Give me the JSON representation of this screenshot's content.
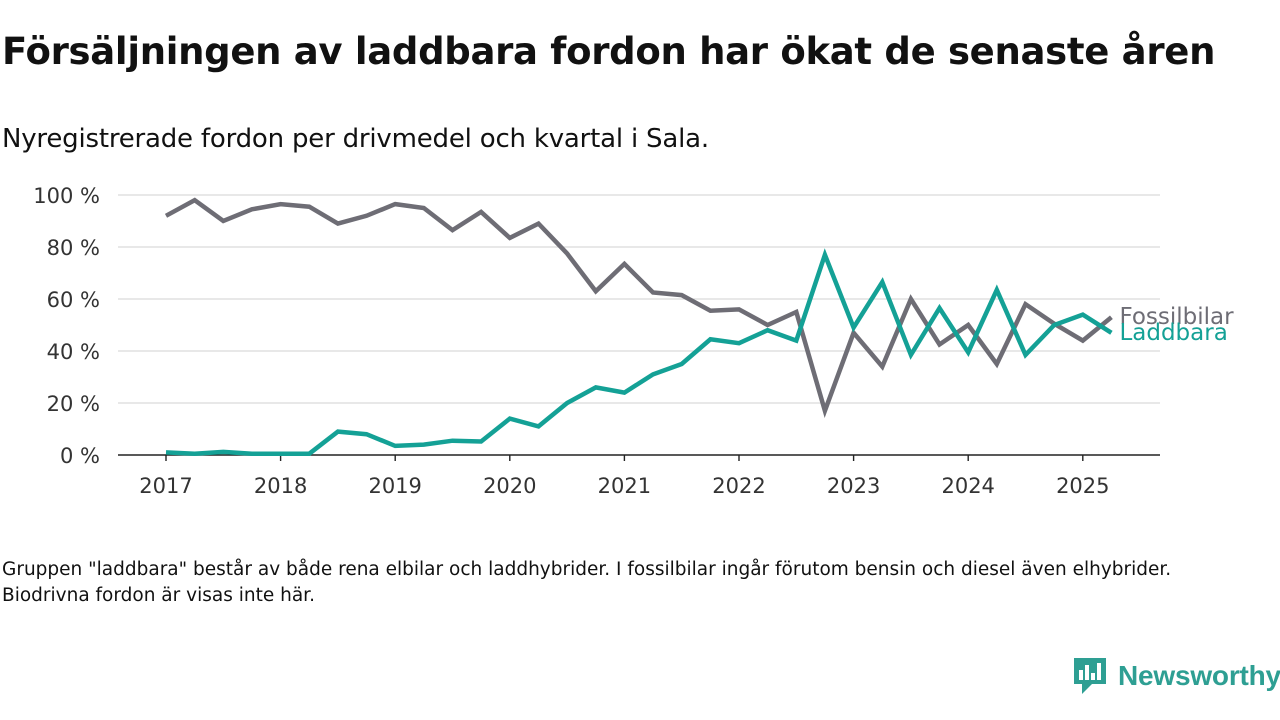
{
  "title": "Försäljningen av laddbara fordon har ökat de senaste åren",
  "subtitle": "Nyregistrerade fordon per drivmedel och kvartal i Sala.",
  "footnote": "Gruppen \"laddbara\" består av både rena elbilar och laddhybrider. I fossilbilar ingår förutom bensin och diesel även elhybrider. Biodrivna fordon är visas inte här.",
  "brand": {
    "name": "Newsworthy",
    "icon": "newsworthy-logo-icon",
    "color": "#2e9f93"
  },
  "chart_data": {
    "type": "line",
    "x": [
      "2017 Q1",
      "2017 Q2",
      "2017 Q3",
      "2017 Q4",
      "2018 Q1",
      "2018 Q2",
      "2018 Q3",
      "2018 Q4",
      "2019 Q1",
      "2019 Q2",
      "2019 Q3",
      "2019 Q4",
      "2020 Q1",
      "2020 Q2",
      "2020 Q3",
      "2020 Q4",
      "2021 Q1",
      "2021 Q2",
      "2021 Q3",
      "2021 Q4",
      "2022 Q1",
      "2022 Q2",
      "2022 Q3",
      "2022 Q4",
      "2023 Q1",
      "2023 Q2",
      "2023 Q3",
      "2023 Q4",
      "2024 Q1",
      "2024 Q2",
      "2024 Q3",
      "2024 Q4",
      "2025 Q1",
      "2025 Q2"
    ],
    "x_ticks": [
      "2017",
      "2018",
      "2019",
      "2020",
      "2021",
      "2022",
      "2023",
      "2024",
      "2025"
    ],
    "y_ticks": [
      "0 %",
      "20 %",
      "40 %",
      "60 %",
      "80 %",
      "100 %"
    ],
    "ylim": [
      0,
      100
    ],
    "grid": true,
    "series": [
      {
        "name": "Fossilbilar",
        "color": "#6e6d75",
        "values": [
          92,
          98,
          90,
          94.5,
          96.5,
          95.5,
          89,
          92,
          96.5,
          95,
          86.5,
          93.5,
          83.5,
          89,
          77.5,
          63,
          73.5,
          62.5,
          61.5,
          55.5,
          56,
          50,
          55,
          17,
          47,
          34,
          60,
          42.5,
          50,
          35,
          58,
          50.5,
          44,
          53
        ]
      },
      {
        "name": "Laddbara",
        "color": "#14a196",
        "values": [
          1,
          0.5,
          1.2,
          0.5,
          0.5,
          0.5,
          9,
          8,
          3.5,
          4,
          5.5,
          5.2,
          14,
          11,
          20,
          26,
          24,
          31,
          35,
          44.5,
          43,
          48,
          44,
          77,
          49,
          66.5,
          38.5,
          56.5,
          39.5,
          63.5,
          38.5,
          50,
          54,
          47
        ]
      }
    ]
  }
}
